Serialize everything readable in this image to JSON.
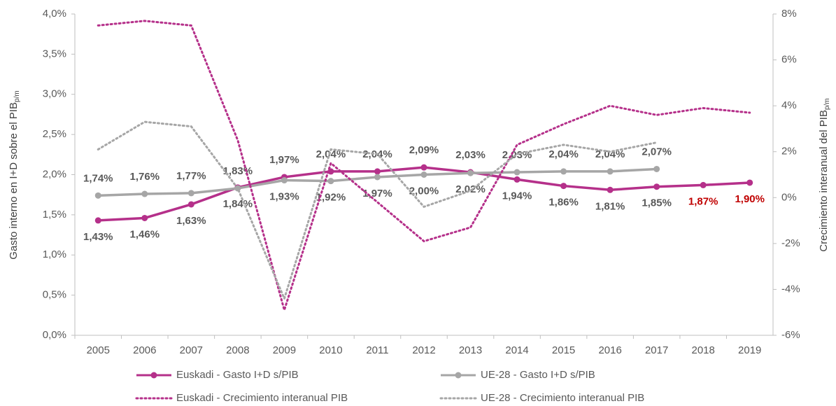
{
  "chart_data": {
    "type": "line",
    "ylabel": "Gasto interno en I+D sobre el PIB",
    "ylabel_sub": "p/m",
    "y2label": "Crecimiento interanual del PIB",
    "y2label_sub": "p/m",
    "categories": [
      "2005",
      "2006",
      "2007",
      "2008",
      "2009",
      "2010",
      "2011",
      "2012",
      "2013",
      "2014",
      "2015",
      "2016",
      "2017",
      "2018",
      "2019"
    ],
    "ylim": [
      0,
      4
    ],
    "yticks": [
      {
        "value": 0,
        "label": "0,0%"
      },
      {
        "value": 0.5,
        "label": "0,5%"
      },
      {
        "value": 1,
        "label": "1,0%"
      },
      {
        "value": 1.5,
        "label": "1,5%"
      },
      {
        "value": 2,
        "label": "2,0%"
      },
      {
        "value": 2.5,
        "label": "2,5%"
      },
      {
        "value": 3,
        "label": "3,0%"
      },
      {
        "value": 3.5,
        "label": "3,5%"
      },
      {
        "value": 4,
        "label": "4,0%"
      }
    ],
    "y2lim": [
      -6,
      8
    ],
    "y2ticks": [
      {
        "value": -6,
        "label": "-6%"
      },
      {
        "value": -4,
        "label": "-4%"
      },
      {
        "value": -2,
        "label": "-2%"
      },
      {
        "value": 0,
        "label": "0%"
      },
      {
        "value": 2,
        "label": "2%"
      },
      {
        "value": 4,
        "label": "4%"
      },
      {
        "value": 6,
        "label": "6%"
      },
      {
        "value": 8,
        "label": "8%"
      }
    ],
    "series": [
      {
        "name": "Euskadi - Gasto I+D s/PIB",
        "color": "#b5308a",
        "style": "solid",
        "marker": true,
        "values": [
          1.43,
          1.46,
          1.63,
          1.84,
          1.97,
          2.04,
          2.04,
          2.09,
          2.03,
          1.94,
          1.86,
          1.81,
          1.85,
          1.87,
          1.9
        ],
        "value_labels": [
          "1,43%",
          "1,46%",
          "1,63%",
          "1,84%",
          "1,97%",
          "2,04%",
          "2,04%",
          "2,09%",
          "2,03%",
          "1,94%",
          "1,86%",
          "1,81%",
          "1,85%",
          "1,87%",
          "1,90%"
        ],
        "value_label_colors": [
          "#595959",
          "#595959",
          "#595959",
          "#595959",
          "#595959",
          "#595959",
          "#595959",
          "#595959",
          "#595959",
          "#595959",
          "#595959",
          "#595959",
          "#595959",
          "#c00000",
          "#c00000"
        ],
        "label_position": [
          "below",
          "below",
          "below",
          "below",
          "above",
          "above",
          "above",
          "above",
          "above",
          "below",
          "below",
          "below",
          "below",
          "below",
          "below"
        ]
      },
      {
        "name": "UE-28 - Gasto I+D s/PIB",
        "color": "#a6a6a6",
        "style": "solid",
        "marker": true,
        "values": [
          1.74,
          1.76,
          1.77,
          1.83,
          1.93,
          1.92,
          1.97,
          2.0,
          2.02,
          2.03,
          2.04,
          2.04,
          2.07,
          null,
          null
        ],
        "value_labels": [
          "1,74%",
          "1,76%",
          "1,77%",
          "1,83%",
          "1,93%",
          "1,92%",
          "1,97%",
          "2,00%",
          "2,02%",
          "2,03%",
          "2,04%",
          "2,04%",
          "2,07%",
          null,
          null
        ],
        "value_label_colors": [
          "#595959",
          "#595959",
          "#595959",
          "#595959",
          "#595959",
          "#595959",
          "#595959",
          "#595959",
          "#595959",
          "#595959",
          "#595959",
          "#595959",
          "#595959",
          null,
          null
        ],
        "label_position": [
          "above",
          "above",
          "above",
          "above",
          "below",
          "below",
          "below",
          "below",
          "below",
          "above",
          "above",
          "above",
          "above",
          null,
          null
        ]
      },
      {
        "name": "Euskadi - Crecimiento interanual PIB",
        "color": "#b5308a",
        "style": "dotted",
        "marker": false,
        "axis": "y2",
        "values": [
          7.5,
          7.7,
          7.5,
          2.5,
          -4.9,
          1.5,
          -0.2,
          -1.9,
          -1.3,
          2.3,
          3.2,
          4.0,
          3.6,
          3.9,
          3.7
        ]
      },
      {
        "name": "UE-28 - Crecimiento interanual PIB",
        "color": "#a6a6a6",
        "style": "dotted",
        "marker": false,
        "axis": "y2",
        "values": [
          2.1,
          3.3,
          3.1,
          0.4,
          -4.4,
          2.1,
          1.9,
          -0.4,
          0.3,
          1.9,
          2.3,
          2.0,
          2.4,
          null,
          null
        ]
      }
    ]
  }
}
